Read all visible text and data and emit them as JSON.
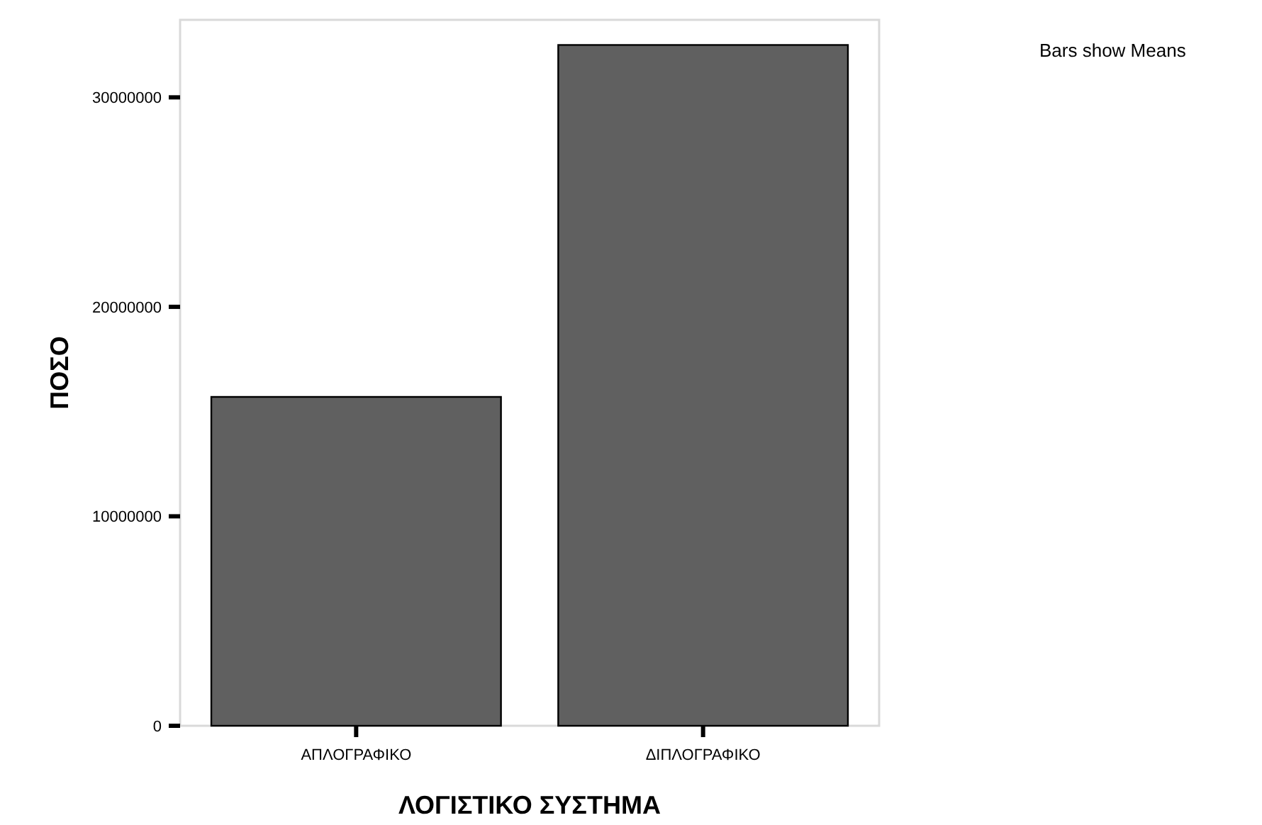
{
  "chart_data": {
    "type": "bar",
    "xlabel": "ΛΟΓΙΣΤΙΚΟ ΣΥΣΤΗΜΑ",
    "ylabel": "ΠΟΣΟ",
    "categories": [
      "ΑΠΛΟΓΡΑΦΙΚΟ",
      "ΔΙΠΛΟΓΡΑΦΙΚΟ"
    ],
    "values": [
      15700000,
      32500000
    ],
    "color": "#606060",
    "ylim": [
      0,
      33700000
    ],
    "yticks": [
      0,
      10000000,
      20000000,
      30000000
    ],
    "grid": false,
    "annotations": [
      "Bars show Means"
    ]
  }
}
